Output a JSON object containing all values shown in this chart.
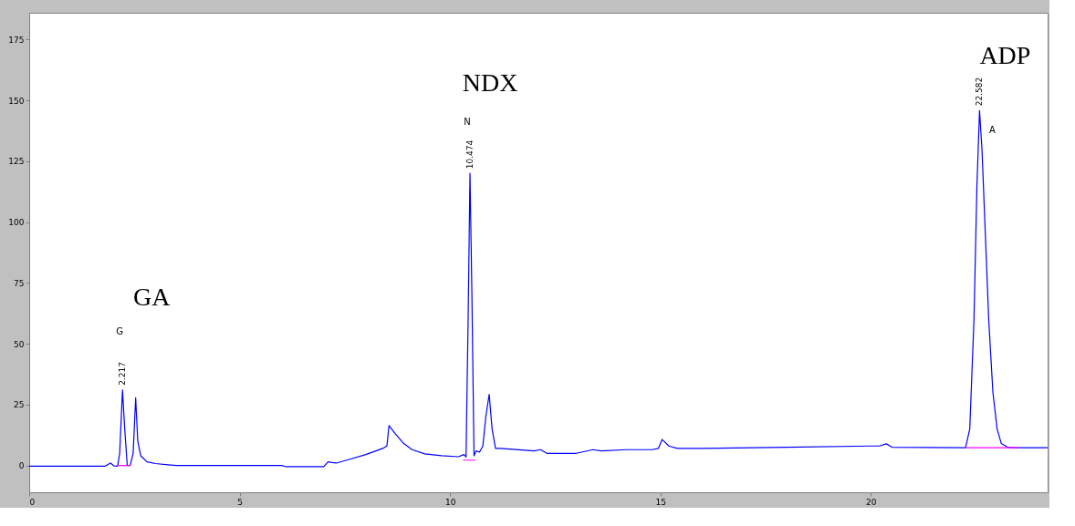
{
  "chart_data": {
    "type": "line",
    "xlim": [
      0,
      24.2
    ],
    "xticks": [
      0,
      5,
      10,
      15,
      20
    ],
    "ylim": [
      -11,
      186
    ],
    "yticks": [
      0,
      25,
      50,
      75,
      100,
      125,
      150,
      175
    ],
    "grid": false,
    "marker": "none",
    "line_style": "solid",
    "annotations": [
      {
        "text": "2.217",
        "x": 2.217,
        "y": 31
      },
      "G",
      "GA",
      {
        "text": "10.474",
        "x": 10.474,
        "y": 120
      },
      "N",
      "NDX",
      {
        "text": "22.582",
        "x": 22.582,
        "y": 145.8
      },
      "A",
      "ADP"
    ],
    "series": [
      {
        "color": "#0000ff",
        "x": [
          0,
          1.8,
          1.93,
          2.02,
          2.1,
          2.15,
          2.217,
          2.27,
          2.33,
          2.4,
          2.47,
          2.53,
          2.58,
          2.65,
          2.8,
          3.0,
          3.3,
          3.5,
          6.0,
          6.1,
          7.0,
          7.1,
          7.2,
          7.3,
          7.6,
          8.0,
          8.4,
          8.5,
          8.55,
          8.7,
          8.9,
          9.1,
          9.4,
          9.8,
          10.2,
          10.33,
          10.38,
          10.43,
          10.474,
          10.52,
          10.57,
          10.62,
          10.7,
          10.78,
          10.85,
          10.93,
          11.0,
          11.08,
          11.2,
          12.0,
          12.15,
          12.3,
          13.0,
          13.4,
          13.6,
          14.2,
          14.8,
          14.95,
          15.04,
          15.2,
          15.4,
          16,
          18,
          20,
          20.2,
          20.37,
          20.5,
          22.25,
          22.35,
          22.45,
          22.52,
          22.582,
          22.64,
          22.72,
          22.8,
          22.9,
          23.0,
          23.1,
          23.25,
          23.4,
          24.2
        ],
        "values": [
          -0.3,
          -0.3,
          1,
          -0.2,
          -0.3,
          5,
          31,
          15,
          0,
          0,
          5,
          27.8,
          10,
          4,
          1.5,
          0.8,
          0.3,
          0,
          0,
          -0.5,
          -0.5,
          1.5,
          1.2,
          1,
          2.5,
          4.5,
          7,
          8,
          16.4,
          13,
          9,
          6.5,
          4.8,
          4,
          3.6,
          4.5,
          3.5,
          60,
          120,
          70,
          4,
          6,
          5.5,
          8,
          20,
          29.2,
          15,
          7,
          7,
          6,
          6.5,
          5,
          5,
          6.5,
          6,
          6.5,
          6.5,
          7,
          10.7,
          8,
          7,
          7,
          7.5,
          8,
          8,
          8.9,
          7.5,
          7.3,
          15,
          60,
          115,
          145.8,
          130,
          95,
          60,
          30,
          15,
          9,
          7.5,
          7.3,
          7.3
        ]
      },
      {
        "color": "#ff00ff",
        "x": [
          2.1,
          2.4
        ],
        "values": [
          0,
          0
        ]
      },
      {
        "color": "#ff00ff",
        "x": [
          10.32,
          10.6
        ],
        "values": [
          2.2,
          2.2
        ]
      },
      {
        "color": "#ff00ff",
        "x": [
          22.27,
          23.5
        ],
        "values": [
          7.3,
          7.3
        ]
      }
    ]
  }
}
